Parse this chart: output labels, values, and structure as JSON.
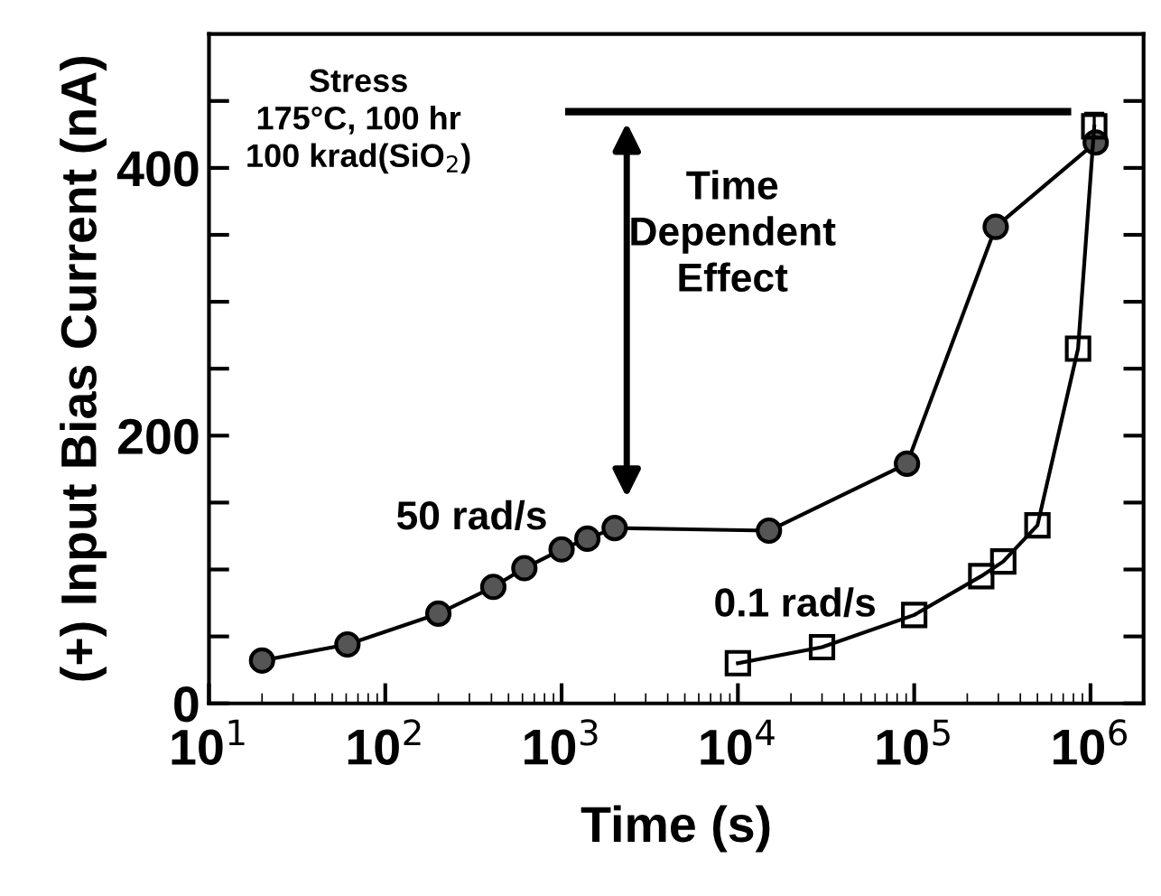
{
  "chart_data": {
    "type": "line",
    "xlabel": "Time (s)",
    "ylabel": "(+) Input Bias Current (nA)",
    "log": "x",
    "xlim": [
      10,
      2000000
    ],
    "xticks": [
      {
        "value": 10,
        "label": "10$^{1}$"
      },
      {
        "value": 100,
        "label": "10$^{2}$"
      },
      {
        "value": 1000,
        "label": "10$^{3}$"
      },
      {
        "value": 10000,
        "label": "10$^{4}$"
      },
      {
        "value": 100000,
        "label": "10$^{5}$"
      },
      {
        "value": 1000000,
        "label": "10$^{6}$"
      }
    ],
    "ylim": [
      0,
      500
    ],
    "yticks": [
      0,
      {
        "value": 50,
        "label": null
      },
      {
        "value": 100,
        "label": null
      },
      {
        "value": 150,
        "label": null
      },
      200,
      {
        "value": 250,
        "label": null
      },
      {
        "value": 300,
        "label": null
      },
      {
        "value": 350,
        "label": null
      },
      400,
      {
        "value": 450,
        "label": null
      }
    ],
    "grid": false,
    "legend": false,
    "line_style": "solid",
    "series": [
      {
        "name": "50 rad/s",
        "color": "#000000",
        "marker": "circle",
        "x": [
          20,
          61,
          200,
          410,
          615,
          1000,
          1400,
          2000,
          15000,
          91000,
          290000,
          1070000
        ],
        "values": [
          32,
          44,
          67,
          87,
          101,
          115,
          123,
          131,
          129,
          179,
          356,
          419
        ]
      },
      {
        "name": "0.1 rad/s",
        "color": "#000000",
        "marker": "square",
        "x": [
          10000,
          30000,
          100000,
          240000,
          320000,
          500000,
          850000,
          1050000
        ],
        "values": [
          30,
          42,
          66,
          95,
          106,
          133,
          265,
          431
        ],
        "errors": [
          null,
          null,
          null,
          null,
          null,
          null,
          null,
          10
        ]
      },
      {
        "color": "#000000",
        "marker": "none",
        "x": [
          1100,
          740000
        ],
        "values": [
          442,
          442
        ]
      }
    ],
    "annotations": [
      "Stress\n175°C, 100 hr\n100 krad(SiO$_{2}$)",
      "Time\nDependent\nEffect"
    ]
  }
}
